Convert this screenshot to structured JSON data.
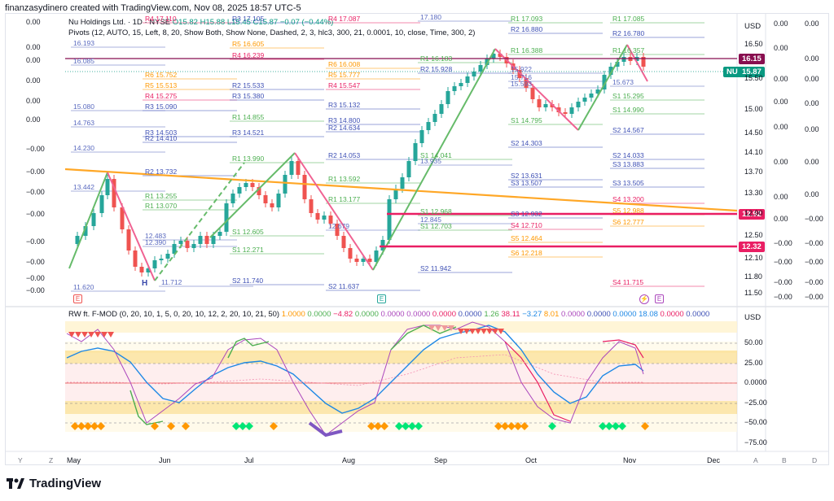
{
  "caption": "finanzasydinero created with TradingView.com, Nov 08, 2025 18:57 UTC-5",
  "legend": {
    "symbol_line": "Nu Holdings Ltd. · 1D · NYSE",
    "ohlc": "O15.82 H15.88 L15.45 C15.87 −0.07 (−0.44%)",
    "pivots_line": "Pivots (12, AUTO, 15, Left, 8, 20, Show Both, Show None, Dashed, 2, 3, hlc3, 300, 21, 0.0001, 10, close, Time, 300, 2)"
  },
  "currency": "USD",
  "symbol_tag": "NU",
  "badges": {
    "price_line": "16.15",
    "last_price": "15.87",
    "level_a": "12.92",
    "level_b": "12.32"
  },
  "right_axis": [
    "16.50",
    "15.50",
    "15.00",
    "14.50",
    "14.10",
    "13.70",
    "13.30",
    "12.90",
    "12.50",
    "12.10",
    "11.80",
    "11.50"
  ],
  "left_axis": [
    "0.00",
    "0.00",
    "0.00",
    "0.00",
    "0.00",
    "0.00",
    "−0.00",
    "−0.00",
    "−0.00",
    "−0.00",
    "−0.00",
    "−0.00",
    "−0.00",
    "−0.00"
  ],
  "far_right_col1": [
    "0.00",
    "0.00",
    "0.00",
    "0.00",
    "0.00",
    "0.00",
    "0.00",
    "0.00",
    "−0.00",
    "−0.00",
    "−0.00",
    "−0.00",
    "−0.00",
    "−0.00",
    "−0.00"
  ],
  "far_right_col2": [
    "0.00",
    "0.00",
    "0.00",
    "0.00",
    "0.00",
    "0.00",
    "0.00",
    "−0.00",
    "−0.00",
    "−0.00",
    "−0.00",
    "−0.00",
    "−0.00",
    "−0.00"
  ],
  "osc": {
    "legend": "RW ft. F-MOD (0, 20, 10, 1, 5, 0, 20, 10, 12, 2, 20, 10, 21, 50)",
    "values": [
      "1.0000",
      "0.0000",
      "−4.82",
      "0.0000",
      "0.0000",
      "0.0000",
      "0.0000",
      "0.0000",
      "1.26",
      "38.11",
      "−3.27",
      "8.01",
      "0.0000",
      "0.0000",
      "0.0000",
      "18.08",
      "0.0000",
      "0.0000"
    ],
    "currency": "USD",
    "axis": [
      "50.00",
      "25.00",
      "0.0000",
      "−25.00",
      "−50.00",
      "−75.00"
    ]
  },
  "x_axis": [
    "May",
    "Jun",
    "Jul",
    "Aug",
    "Sep",
    "Oct",
    "Nov",
    "Dec"
  ],
  "bottom_left_buttons": [
    "Y",
    "Z"
  ],
  "bottom_right_buttons": [
    "A",
    "B",
    "D"
  ],
  "pivot_labels": [
    {
      "t": "R4",
      "v": "17.110"
    },
    {
      "t": "R3",
      "v": "17.105"
    },
    {
      "t": "R4",
      "v": "17.087"
    },
    {
      "t": "R1",
      "v": "17.093"
    },
    {
      "t": "R1",
      "v": "17.085"
    },
    {
      "t": "R5",
      "v": "16.605"
    },
    {
      "t": "R4",
      "v": "16.239"
    },
    {
      "t": "R2",
      "v": "16.880"
    },
    {
      "t": "R2",
      "v": "16.780"
    },
    {
      "t": "R6",
      "v": "16.008"
    },
    {
      "t": "R5",
      "v": "15.777"
    },
    {
      "t": "R1",
      "v": "16.388"
    },
    {
      "t": "R1",
      "v": "16.357"
    },
    {
      "t": "R6",
      "v": "15.752"
    },
    {
      "t": "R5",
      "v": "15.513"
    },
    {
      "t": "R4",
      "v": "15.275"
    },
    {
      "t": "R3",
      "v": "15.090"
    },
    {
      "t": "R2",
      "v": "15.533"
    },
    {
      "t": "R3",
      "v": "15.380"
    },
    {
      "t": "R4",
      "v": "15.547"
    },
    {
      "t": "R3",
      "v": "15.132"
    },
    {
      "t": "R1",
      "v": "16.183"
    },
    {
      "t": "R2",
      "v": "15.928"
    },
    {
      "t": "S1",
      "v": "15.295"
    },
    {
      "t": "S1",
      "v": "14.990"
    },
    {
      "t": "R1",
      "v": "14.855"
    },
    {
      "t": "R3",
      "v": "14.800"
    },
    {
      "t": "R2",
      "v": "14.634"
    },
    {
      "t": "R3",
      "v": "14.521"
    },
    {
      "t": "R3",
      "v": "14.503"
    },
    {
      "t": "R2",
      "v": "14.410"
    },
    {
      "t": "S1",
      "v": "14.795"
    },
    {
      "t": "S2",
      "v": "14.567"
    },
    {
      "t": "R1",
      "v": "13.990"
    },
    {
      "t": "R2",
      "v": "14.053"
    },
    {
      "t": "S1",
      "v": "14.041"
    },
    {
      "t": "S2",
      "v": "14.303"
    },
    {
      "t": "R2",
      "v": "13.732"
    },
    {
      "t": "R1",
      "v": "13.592"
    },
    {
      "t": "S2",
      "v": "13.631"
    },
    {
      "t": "S3",
      "v": "13.507"
    },
    {
      "t": "R1",
      "v": "13.255"
    },
    {
      "t": "R1",
      "v": "13.070"
    },
    {
      "t": "R1",
      "v": "13.177"
    },
    {
      "t": "S2",
      "v": "14.033"
    },
    {
      "t": "S3",
      "v": "13.883"
    },
    {
      "t": "S3",
      "v": "13.505"
    },
    {
      "t": "S4",
      "v": "13.200"
    },
    {
      "t": "S5",
      "v": "12.988"
    },
    {
      "t": "S1",
      "v": "12.968"
    },
    {
      "t": "S3",
      "v": "12.932"
    },
    {
      "t": "S6",
      "v": "12.777"
    },
    {
      "t": "S4",
      "v": "12.710"
    },
    {
      "t": "S1",
      "v": "12.703"
    },
    {
      "t": "S5",
      "v": "12.464"
    },
    {
      "t": "S6",
      "v": "12.218"
    },
    {
      "t": "S1",
      "v": "12.605"
    },
    {
      "t": "S1",
      "v": "12.271"
    },
    {
      "t": "S2",
      "v": "11.942"
    },
    {
      "t": "S2",
      "v": "11.740"
    },
    {
      "t": "S2",
      "v": "11.637"
    },
    {
      "t": "S4",
      "v": "11.715"
    },
    {
      "t": "",
      "v": "11.620"
    },
    {
      "t": "",
      "v": "11.712"
    },
    {
      "t": "",
      "v": "16.085"
    },
    {
      "t": "",
      "v": "16.193"
    },
    {
      "t": "",
      "v": "15.080"
    },
    {
      "t": "",
      "v": "14.763"
    },
    {
      "t": "",
      "v": "14.230"
    },
    {
      "t": "",
      "v": "13.442"
    },
    {
      "t": "",
      "v": "15.716"
    },
    {
      "t": "",
      "v": "15.593"
    },
    {
      "t": "",
      "v": "15.673"
    },
    {
      "t": "",
      "v": "12.845"
    },
    {
      "t": "",
      "v": "12.679"
    },
    {
      "t": "",
      "v": "12.483"
    },
    {
      "t": "",
      "v": "12.390"
    },
    {
      "t": "",
      "v": "13.935"
    },
    {
      "t": "",
      "v": "15.922"
    },
    {
      "t": "",
      "v": "17.180"
    }
  ],
  "markers": {
    "earnings": "E",
    "high_low": "H",
    "dividend": "E"
  },
  "brand": "TradingView",
  "colors": {
    "up": "#26a69a",
    "down": "#ef5350",
    "zigzag_up": "#66bb6a",
    "zigzag_down": "#f06292",
    "trend": "#ffa726",
    "price_line": "#e91e63",
    "last_price": "#089981"
  }
}
